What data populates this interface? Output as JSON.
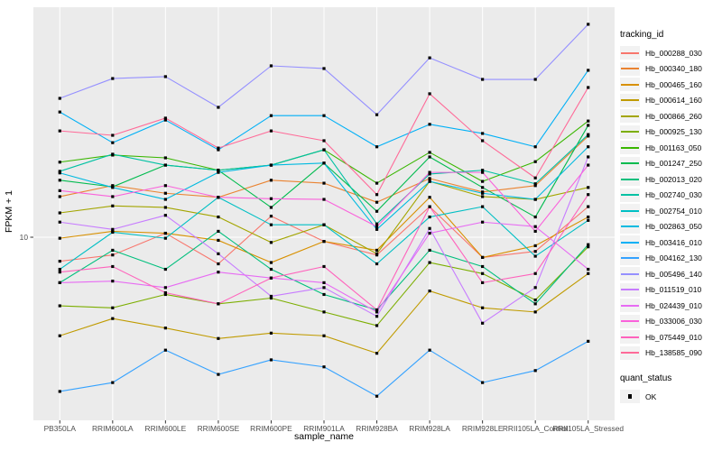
{
  "chart_data": {
    "type": "line",
    "x_type": "categorical",
    "y_scale": "log10",
    "xlabel": "sample_name",
    "ylabel": "FPKM + 1",
    "y_ticks": [
      10
    ],
    "y_tick_labels": [
      "10"
    ],
    "ylim": [
      1.6,
      95
    ],
    "grid": "major-white-on-gray",
    "panel_bg": "#EBEBEB",
    "gridline_color": "#FFFFFF",
    "point_marker": "black-square",
    "legend_title": "tracking_id",
    "legend_position": "right",
    "quant_legend": {
      "title": "quant_status",
      "items": [
        {
          "label": "OK",
          "marker": "black-square"
        }
      ]
    },
    "categories": [
      "PB350LA",
      "RRIM600LA",
      "RRIM600LE",
      "RRIM600SE",
      "RRIM600PE",
      "RRIM901LA",
      "RRIM928BA",
      "RRIM928LA",
      "RRIM928LE",
      "RRII105LA_Control",
      "RRII105LA_Stressed"
    ],
    "series": [
      {
        "name": "Hb_000288_030",
        "color": "#F8766D",
        "values": [
          7.9,
          8.4,
          10.4,
          7.7,
          12.3,
          9.6,
          8.4,
          13.5,
          8.2,
          8.7,
          13.5
        ]
      },
      {
        "name": "Hb_000340_180",
        "color": "#EA8331",
        "values": [
          14.9,
          16.6,
          15.4,
          14.8,
          17.5,
          17.0,
          14.1,
          17.8,
          15.6,
          16.6,
          27.0
        ]
      },
      {
        "name": "Hb_000465_160",
        "color": "#D89000",
        "values": [
          9.9,
          10.6,
          10.4,
          9.7,
          7.8,
          9.6,
          8.8,
          14.8,
          8.2,
          9.2,
          12.2
        ]
      },
      {
        "name": "Hb_000614_160",
        "color": "#C09B00",
        "values": [
          3.8,
          4.5,
          4.1,
          3.7,
          3.9,
          3.8,
          3.2,
          5.9,
          5.0,
          4.8,
          7.0
        ]
      },
      {
        "name": "Hb_000866_260",
        "color": "#A3A500",
        "values": [
          12.7,
          13.6,
          13.4,
          12.2,
          9.5,
          11.3,
          8.5,
          17.3,
          14.9,
          14.5,
          16.3
        ]
      },
      {
        "name": "Hb_000925_130",
        "color": "#7CAE00",
        "values": [
          5.1,
          5.0,
          5.7,
          5.2,
          5.5,
          4.8,
          4.2,
          7.8,
          7.0,
          5.4,
          9.1
        ]
      },
      {
        "name": "Hb_001163_050",
        "color": "#39B600",
        "values": [
          20.9,
          22.4,
          21.8,
          19.3,
          20.3,
          23.6,
          17.0,
          23.0,
          17.3,
          21.0,
          31.3
        ]
      },
      {
        "name": "Hb_001247_250",
        "color": "#00BB4E",
        "values": [
          17.5,
          16.4,
          20.3,
          19.3,
          13.4,
          20.7,
          12.9,
          22.0,
          16.3,
          12.2,
          30.0
        ]
      },
      {
        "name": "Hb_002013_020",
        "color": "#00BF7D",
        "values": [
          6.4,
          8.8,
          7.3,
          10.6,
          7.3,
          5.7,
          4.9,
          8.8,
          7.5,
          5.2,
          9.3
        ]
      },
      {
        "name": "Hb_002740_030",
        "color": "#00C1A3",
        "values": [
          19.1,
          22.6,
          20.3,
          19.3,
          20.3,
          23.6,
          11.4,
          18.6,
          19.3,
          16.9,
          27.4
        ]
      },
      {
        "name": "Hb_002754_010",
        "color": "#00BFC4",
        "values": [
          7.3,
          10.5,
          9.9,
          14.8,
          11.3,
          11.3,
          7.7,
          12.2,
          13.5,
          8.3,
          11.8
        ]
      },
      {
        "name": "Hb_002863_050",
        "color": "#00BAE0",
        "values": [
          18.8,
          16.3,
          14.5,
          18.9,
          20.3,
          20.7,
          10.8,
          17.3,
          15.4,
          14.5,
          24.3
        ]
      },
      {
        "name": "Hb_003416_010",
        "color": "#00B0F6",
        "values": [
          34.2,
          25.3,
          31.6,
          23.6,
          33.0,
          33.0,
          24.3,
          30.3,
          27.7,
          24.3,
          51.5
        ]
      },
      {
        "name": "Hb_004162_130",
        "color": "#35A2FF",
        "values": [
          2.2,
          2.4,
          3.3,
          2.6,
          3.0,
          2.8,
          2.1,
          3.3,
          2.4,
          2.7,
          3.6
        ]
      },
      {
        "name": "Hb_005496_140",
        "color": "#9590FF",
        "values": [
          39.1,
          47.5,
          48.4,
          35.8,
          53.8,
          52.4,
          33.3,
          58.2,
          47.1,
          47.1,
          80.9
        ]
      },
      {
        "name": "Hb_011519_010",
        "color": "#C77CFF",
        "values": [
          11.6,
          10.8,
          12.4,
          8.5,
          5.6,
          6.1,
          4.6,
          10.9,
          4.3,
          6.1,
          22.0
        ]
      },
      {
        "name": "Hb_024439_010",
        "color": "#E76BF3",
        "values": [
          6.4,
          6.5,
          6.1,
          7.1,
          6.7,
          6.4,
          4.8,
          10.4,
          11.6,
          11.1,
          7.3
        ]
      },
      {
        "name": "Hb_033006_030",
        "color": "#FA62DB",
        "values": [
          15.8,
          14.9,
          16.6,
          14.8,
          14.6,
          14.5,
          11.1,
          18.9,
          18.9,
          10.6,
          20.3
        ]
      },
      {
        "name": "Hb_075449_010",
        "color": "#FF62BC",
        "values": [
          7.1,
          7.5,
          5.8,
          5.2,
          6.7,
          7.5,
          4.9,
          13.5,
          6.4,
          7.0,
          15.2
        ]
      },
      {
        "name": "Hb_138585_090",
        "color": "#FF6A98",
        "values": [
          28.4,
          27.2,
          32.2,
          24.0,
          28.4,
          25.8,
          15.2,
          40.9,
          25.8,
          17.9,
          43.5
        ]
      }
    ]
  }
}
